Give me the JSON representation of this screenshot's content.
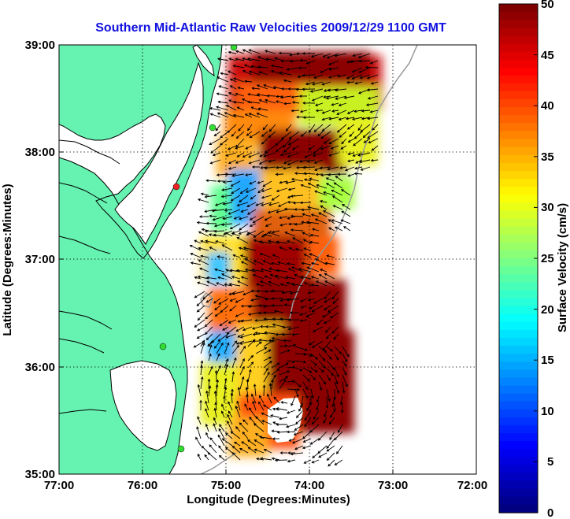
{
  "title": "Southern Mid-Atlantic Raw Velocities 2009/12/29 1100 GMT",
  "x_axis": {
    "label": "Longitude (Degrees:Minutes)",
    "ticks": [
      "77:00",
      "76:00",
      "75:00",
      "74:00",
      "73:00",
      "72:00"
    ]
  },
  "y_axis": {
    "label": "Latitude (Degrees:Minutes)",
    "ticks": [
      "39:00",
      "38:00",
      "37:00",
      "36:00",
      "35:00"
    ]
  },
  "colorbar": {
    "label": "Surface Velocity (cm/s)",
    "ticks": [
      "50",
      "45",
      "40",
      "35",
      "30",
      "25",
      "20",
      "15",
      "10",
      "5",
      "0"
    ],
    "range": [
      0,
      50
    ],
    "colormap": "jet"
  },
  "colors": {
    "land": "#66f2b0",
    "coast": "#000000",
    "title": "#1010e0",
    "station_green": "#33dd33",
    "station_red": "#ee2222"
  },
  "map": {
    "lon_range": [
      -77,
      -72
    ],
    "lat_range": [
      35,
      39
    ],
    "grid": "dotted",
    "features": [
      "velocity-field",
      "vector-arrows",
      "coastline",
      "bathymetry-contour",
      "hf-radar-stations"
    ]
  }
}
